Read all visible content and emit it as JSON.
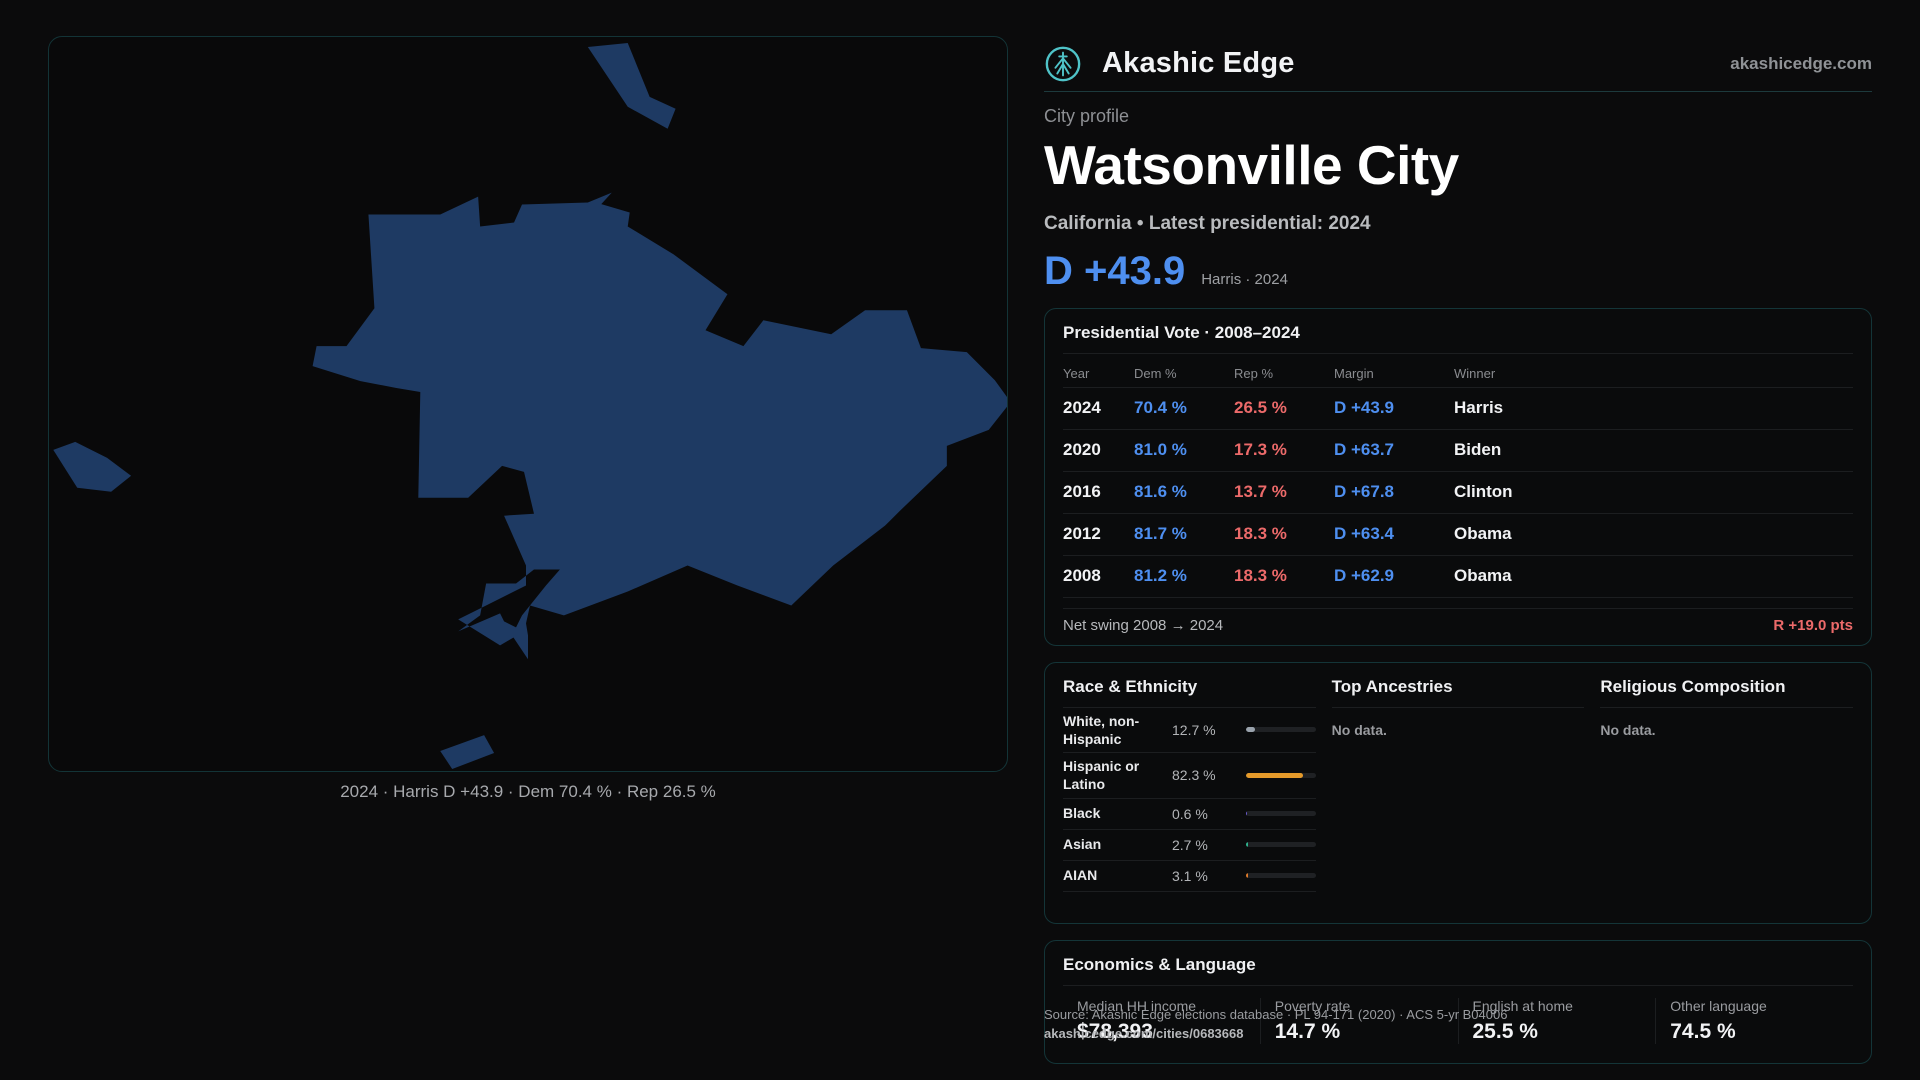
{
  "brand": {
    "name": "Akashic Edge",
    "site": "akashicedge.com",
    "logo_icon": "tree-logo-icon",
    "accent": "#4fc3c8"
  },
  "profile": {
    "eyebrow": "City profile",
    "city": "Watsonville City",
    "subtitle": "California • Latest presidential: 2024",
    "margin": "D +43.9",
    "margin_sub": "Harris · 2024"
  },
  "map": {
    "caption": "2024 · Harris D +43.9 · Dem 70.4 % · Rep 26.5 %",
    "fill_color": "#1e3a63"
  },
  "vote": {
    "title": "Presidential Vote · 2008–2024",
    "headers": [
      "Year",
      "Dem %",
      "Rep %",
      "Margin",
      "Winner"
    ],
    "rows": [
      {
        "year": "2024",
        "dem": "70.4 %",
        "rep": "26.5 %",
        "margin": "D +43.9",
        "winner": "Harris"
      },
      {
        "year": "2020",
        "dem": "81.0 %",
        "rep": "17.3 %",
        "margin": "D +63.7",
        "winner": "Biden"
      },
      {
        "year": "2016",
        "dem": "81.6 %",
        "rep": "13.7 %",
        "margin": "D +67.8",
        "winner": "Clinton"
      },
      {
        "year": "2012",
        "dem": "81.7 %",
        "rep": "18.3 %",
        "margin": "D +63.4",
        "winner": "Obama"
      },
      {
        "year": "2008",
        "dem": "81.2 %",
        "rep": "18.3 %",
        "margin": "D +62.9",
        "winner": "Obama"
      }
    ],
    "swing_label": "Net swing 2008 → 2024",
    "swing_value": "R +19.0 pts"
  },
  "race": {
    "title": "Race & Ethnicity",
    "rows": [
      {
        "label": "White, non-Hispanic",
        "pct": "12.7 %",
        "fraction": 0.127,
        "color": "#9aa3ad"
      },
      {
        "label": "Hispanic or Latino",
        "pct": "82.3 %",
        "fraction": 0.823,
        "color": "#e59a2a"
      },
      {
        "label": "Black",
        "pct": "0.6 %",
        "fraction": 0.006,
        "color": "#6a5acd"
      },
      {
        "label": "Asian",
        "pct": "2.7 %",
        "fraction": 0.027,
        "color": "#2fb38e"
      },
      {
        "label": "AIAN",
        "pct": "3.1 %",
        "fraction": 0.031,
        "color": "#e07b2a"
      }
    ]
  },
  "ancestries": {
    "title": "Top Ancestries",
    "empty": "No data."
  },
  "religion": {
    "title": "Religious Composition",
    "empty": "No data."
  },
  "econ": {
    "title": "Economics & Language",
    "items": [
      {
        "label": "Median HH income",
        "value": "$78,393"
      },
      {
        "label": "Poverty rate",
        "value": "14.7 %"
      },
      {
        "label": "English at home",
        "value": "25.5 %"
      },
      {
        "label": "Other language",
        "value": "74.5 %"
      }
    ]
  },
  "source": {
    "line": "Source: Akashic Edge elections database · PL 94-171 (2020) · ACS 5-yr B04006",
    "url": "akashicedge.com/cities/0683668"
  }
}
